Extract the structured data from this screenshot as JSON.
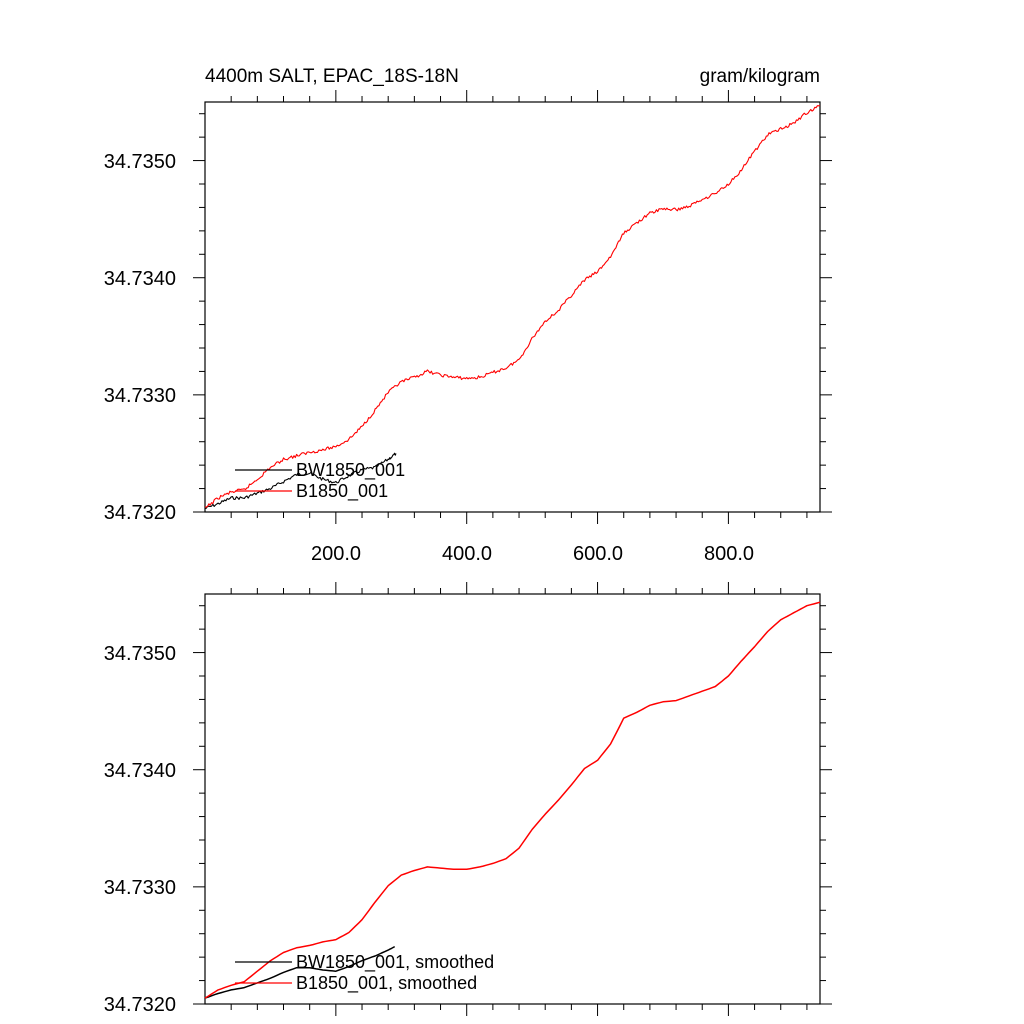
{
  "chart_data": [
    {
      "type": "line",
      "title": "4400m SALT, EPAC_18S-18N",
      "units": "gram/kilogram",
      "xlabel": "",
      "ylabel": "",
      "xlim": [
        0,
        940
      ],
      "ylim": [
        34.732,
        34.7355
      ],
      "x_ticks": [
        200,
        400,
        600,
        800
      ],
      "x_tick_labels": [
        "200.0",
        "400.0",
        "600.0",
        "800.0"
      ],
      "y_ticks": [
        34.732,
        34.733,
        34.734,
        34.735
      ],
      "y_tick_labels": [
        "34.7320",
        "34.7330",
        "34.7340",
        "34.7350"
      ],
      "legend_position": "bottom-left",
      "series": [
        {
          "name": "BW1850_001",
          "color": "#000000",
          "x": [
            0,
            20,
            40,
            60,
            80,
            100,
            120,
            140,
            160,
            180,
            200,
            220,
            240,
            260,
            280,
            292
          ],
          "y": [
            34.73203,
            34.73207,
            34.73212,
            34.73212,
            34.73216,
            34.7322,
            34.73226,
            34.73232,
            34.73233,
            34.73228,
            34.73225,
            34.73231,
            34.73236,
            34.73238,
            34.73245,
            34.7325
          ]
        },
        {
          "name": "B1850_001",
          "color": "#ff0000",
          "x": [
            0,
            20,
            40,
            60,
            80,
            100,
            120,
            140,
            160,
            180,
            200,
            220,
            240,
            260,
            280,
            300,
            320,
            340,
            360,
            380,
            400,
            420,
            440,
            460,
            480,
            500,
            520,
            540,
            560,
            580,
            600,
            620,
            640,
            660,
            680,
            700,
            720,
            740,
            760,
            780,
            800,
            820,
            840,
            860,
            880,
            900,
            920,
            940
          ],
          "y": [
            34.73203,
            34.73212,
            34.73217,
            34.73219,
            34.73228,
            34.73238,
            34.73245,
            34.73248,
            34.73251,
            34.73253,
            34.73256,
            34.73262,
            34.73273,
            34.73287,
            34.73302,
            34.73311,
            34.73315,
            34.7332,
            34.73317,
            34.73315,
            34.73314,
            34.73315,
            34.73319,
            34.73323,
            34.7333,
            34.73348,
            34.73363,
            34.73372,
            34.73385,
            34.73398,
            34.73405,
            34.73418,
            34.73438,
            34.73447,
            34.73455,
            34.73459,
            34.73458,
            34.73461,
            34.73467,
            34.73472,
            34.7348,
            34.73492,
            34.73508,
            34.73522,
            34.73527,
            34.73532,
            34.73541,
            34.73547
          ]
        }
      ]
    },
    {
      "type": "line",
      "title": "",
      "xlabel": "",
      "ylabel": "",
      "xlim": [
        0,
        940
      ],
      "ylim": [
        34.732,
        34.7355
      ],
      "x_ticks": [
        200,
        400,
        600,
        800
      ],
      "y_ticks": [
        34.732,
        34.733,
        34.734,
        34.735
      ],
      "y_tick_labels": [
        "34.7320",
        "34.7330",
        "34.7340",
        "34.7350"
      ],
      "legend_position": "bottom-left",
      "series": [
        {
          "name": "BW1850_001, smoothed",
          "color": "#000000",
          "x": [
            0,
            20,
            40,
            60,
            80,
            100,
            120,
            140,
            160,
            180,
            200,
            220,
            240,
            260,
            280,
            290
          ],
          "y": [
            34.73205,
            34.73209,
            34.73212,
            34.73214,
            34.73218,
            34.73222,
            34.73227,
            34.73231,
            34.73231,
            34.73229,
            34.73228,
            34.73232,
            34.73237,
            34.73241,
            34.73246,
            34.73249
          ]
        },
        {
          "name": "B1850_001, smoothed",
          "color": "#ff0000",
          "x": [
            0,
            20,
            40,
            60,
            80,
            100,
            120,
            140,
            160,
            180,
            200,
            220,
            240,
            260,
            280,
            300,
            320,
            340,
            360,
            380,
            400,
            420,
            440,
            460,
            480,
            500,
            520,
            540,
            560,
            580,
            600,
            620,
            640,
            660,
            680,
            700,
            720,
            740,
            760,
            780,
            800,
            820,
            840,
            860,
            880,
            900,
            920,
            940
          ],
          "y": [
            34.73205,
            34.73212,
            34.73216,
            34.73219,
            34.73228,
            34.73237,
            34.73244,
            34.73248,
            34.7325,
            34.73253,
            34.73255,
            34.73261,
            34.73272,
            34.73287,
            34.73301,
            34.7331,
            34.73314,
            34.73317,
            34.73316,
            34.73315,
            34.73315,
            34.73317,
            34.7332,
            34.73324,
            34.73333,
            34.73349,
            34.73362,
            34.73374,
            34.73387,
            34.73401,
            34.73408,
            34.73422,
            34.73444,
            34.73449,
            34.73455,
            34.73458,
            34.73459,
            34.73463,
            34.73467,
            34.73471,
            34.7348,
            34.73493,
            34.73505,
            34.73518,
            34.73528,
            34.73534,
            34.7354,
            34.73543
          ]
        }
      ]
    }
  ]
}
